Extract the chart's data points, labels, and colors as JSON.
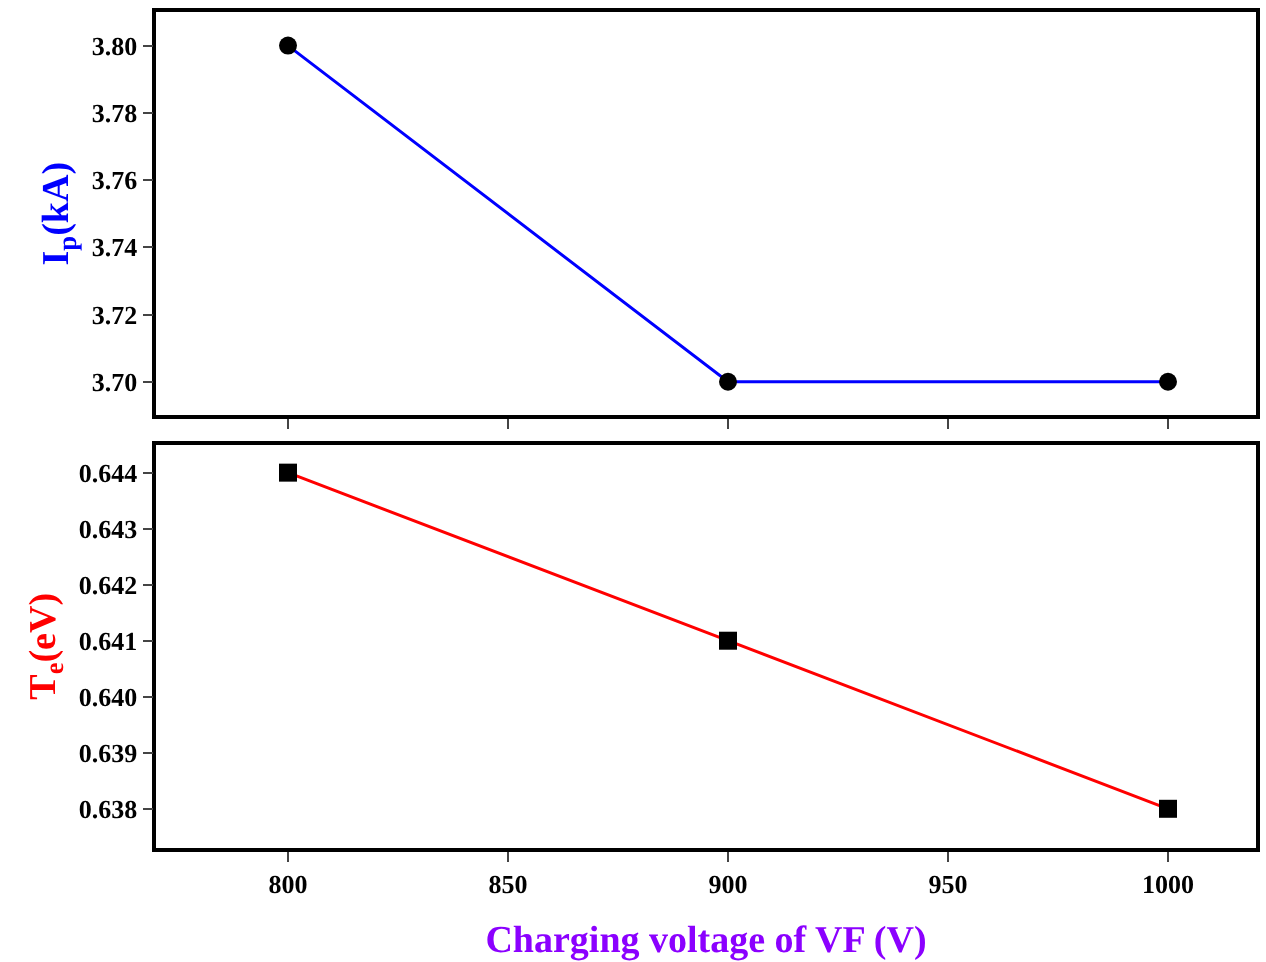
{
  "chart_data": [
    {
      "type": "line",
      "ylabel": "I$_{p}$(kA)",
      "x": [
        800,
        900,
        1000
      ],
      "xlim": [
        770,
        1020
      ],
      "xticks": [
        800,
        850,
        900,
        950,
        1000
      ],
      "ylim": [
        3.69,
        3.81
      ],
      "yticks": [
        {
          "value": 3.7,
          "label": "3.70"
        },
        3.72,
        3.74,
        3.76,
        3.78,
        {
          "value": 3.8,
          "label": "3.80"
        }
      ],
      "tick_labels": "y",
      "marker": "circle",
      "line_style": "solid",
      "series": [
        {
          "color": "#0000ff",
          "values": [
            3.8,
            3.7,
            3.7
          ]
        }
      ]
    },
    {
      "type": "line",
      "ylabel": "T$_{e}$(eV)",
      "xlabel": "Charging voltage of VF (V)",
      "x": [
        800,
        900,
        1000
      ],
      "xlim": [
        770,
        1020
      ],
      "xticks": [
        800,
        850,
        900,
        950,
        1000
      ],
      "ylim": [
        0.6373,
        0.6445
      ],
      "yticks": [
        0.638,
        0.639,
        {
          "value": 0.64,
          "label": "0.640"
        },
        0.641,
        0.642,
        0.643,
        0.644
      ],
      "marker": "square",
      "line_style": "solid",
      "series": [
        {
          "color": "#ff0000",
          "values": [
            0.644,
            0.641,
            0.638
          ]
        }
      ]
    }
  ]
}
